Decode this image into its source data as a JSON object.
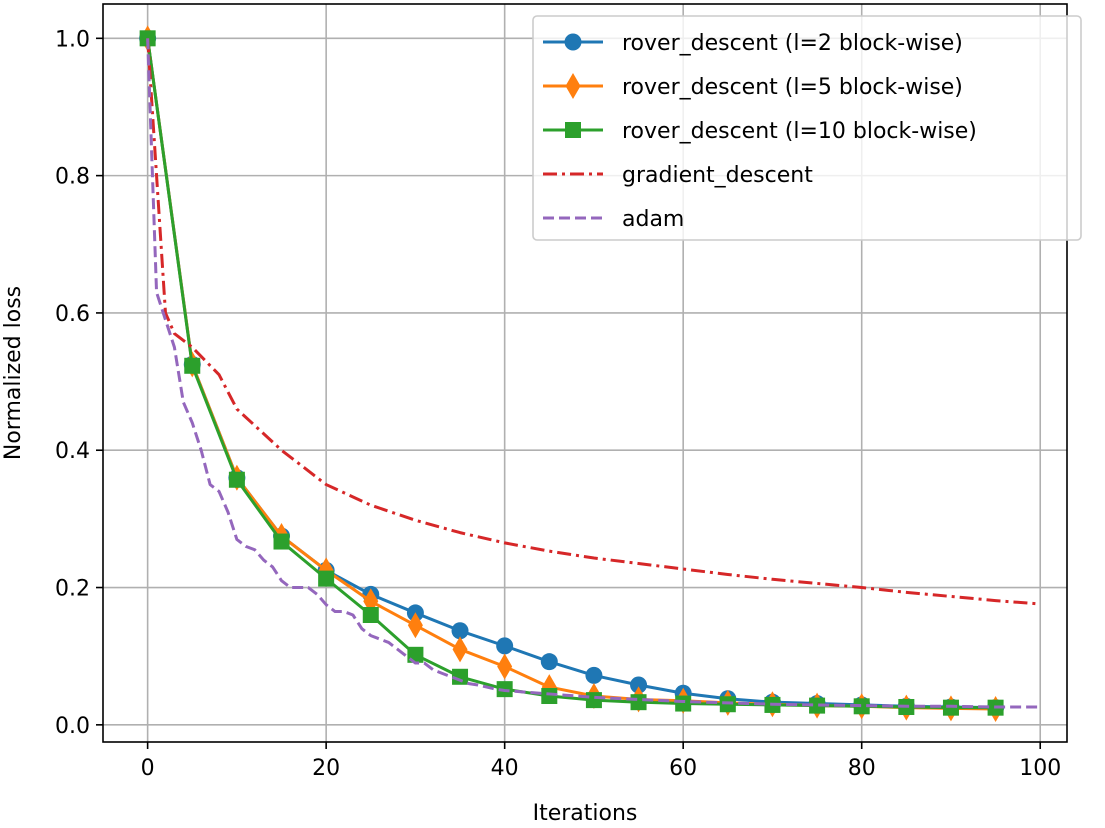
{
  "chart_data": {
    "type": "line",
    "title": "",
    "xlabel": "Iterations",
    "ylabel": "Normalized loss",
    "xlim": [
      -5,
      103
    ],
    "ylim": [
      -0.025,
      1.05
    ],
    "xticks": [
      0,
      20,
      40,
      60,
      80,
      100
    ],
    "yticks": [
      0.0,
      0.2,
      0.4,
      0.6,
      0.8,
      1.0
    ],
    "xtick_labels": [
      "0",
      "20",
      "40",
      "60",
      "80",
      "100"
    ],
    "ytick_labels": [
      "0.0",
      "0.2",
      "0.4",
      "0.6",
      "0.8",
      "1.0"
    ],
    "grid": true,
    "legend_position": "upper right",
    "series": [
      {
        "name": "rover_descent (l=2 block-wise)",
        "color": "#1f77b4",
        "linestyle": "solid",
        "marker": "circle",
        "x": [
          0,
          5,
          10,
          15,
          20,
          25,
          30,
          35,
          40,
          45,
          50,
          55,
          60,
          65,
          70,
          75,
          80,
          85,
          90,
          95
        ],
        "y": [
          1.0,
          0.525,
          0.36,
          0.275,
          0.225,
          0.19,
          0.163,
          0.137,
          0.115,
          0.092,
          0.072,
          0.058,
          0.046,
          0.038,
          0.033,
          0.031,
          0.029,
          0.027,
          0.026,
          0.025
        ]
      },
      {
        "name": "rover_descent (l=5 block-wise)",
        "color": "#ff7f0e",
        "linestyle": "solid",
        "marker": "thin_diamond",
        "x": [
          0,
          5,
          10,
          15,
          20,
          25,
          30,
          35,
          40,
          45,
          50,
          55,
          60,
          65,
          70,
          75,
          80,
          85,
          90,
          95
        ],
        "y": [
          1.0,
          0.525,
          0.36,
          0.275,
          0.225,
          0.18,
          0.145,
          0.11,
          0.085,
          0.055,
          0.042,
          0.037,
          0.035,
          0.032,
          0.03,
          0.028,
          0.027,
          0.025,
          0.024,
          0.023
        ]
      },
      {
        "name": "rover_descent (l=10 block-wise)",
        "color": "#2ca02c",
        "linestyle": "solid",
        "marker": "square",
        "x": [
          0,
          5,
          10,
          15,
          20,
          25,
          30,
          35,
          40,
          45,
          50,
          55,
          60,
          65,
          70,
          75,
          80,
          85,
          90,
          95
        ],
        "y": [
          1.0,
          0.523,
          0.357,
          0.267,
          0.213,
          0.16,
          0.102,
          0.07,
          0.052,
          0.042,
          0.036,
          0.033,
          0.031,
          0.03,
          0.029,
          0.028,
          0.027,
          0.026,
          0.025,
          0.025
        ]
      },
      {
        "name": "gradient_descent",
        "color": "#d62728",
        "linestyle": "dashdot",
        "marker": "none",
        "x": [
          0,
          1,
          2,
          3,
          5,
          8,
          10,
          15,
          20,
          25,
          30,
          35,
          40,
          45,
          50,
          55,
          60,
          65,
          70,
          75,
          80,
          85,
          90,
          95,
          100
        ],
        "y": [
          1.0,
          0.8,
          0.6,
          0.57,
          0.55,
          0.51,
          0.46,
          0.4,
          0.35,
          0.32,
          0.298,
          0.28,
          0.265,
          0.253,
          0.243,
          0.235,
          0.227,
          0.219,
          0.212,
          0.206,
          0.2,
          0.193,
          0.187,
          0.181,
          0.176
        ]
      },
      {
        "name": "adam",
        "color": "#9467bd",
        "linestyle": "dashed",
        "marker": "none",
        "x": [
          0,
          1,
          2,
          3,
          4,
          5,
          6,
          7,
          8,
          9,
          10,
          11,
          12,
          13,
          14,
          15,
          16,
          17,
          18,
          19,
          20,
          21,
          22,
          23,
          24,
          25,
          26,
          27,
          28,
          29,
          30,
          31,
          32,
          33,
          34,
          35,
          36,
          37,
          38,
          39,
          40,
          45,
          50,
          55,
          60,
          65,
          70,
          75,
          80,
          85,
          90,
          95,
          100
        ],
        "y": [
          1.0,
          0.63,
          0.59,
          0.55,
          0.47,
          0.44,
          0.4,
          0.35,
          0.34,
          0.31,
          0.27,
          0.26,
          0.255,
          0.24,
          0.23,
          0.21,
          0.2,
          0.2,
          0.2,
          0.19,
          0.175,
          0.165,
          0.165,
          0.16,
          0.14,
          0.13,
          0.125,
          0.12,
          0.11,
          0.1,
          0.09,
          0.09,
          0.08,
          0.075,
          0.07,
          0.065,
          0.06,
          0.058,
          0.055,
          0.052,
          0.05,
          0.045,
          0.04,
          0.037,
          0.034,
          0.032,
          0.03,
          0.029,
          0.028,
          0.027,
          0.027,
          0.026,
          0.026
        ]
      }
    ]
  }
}
